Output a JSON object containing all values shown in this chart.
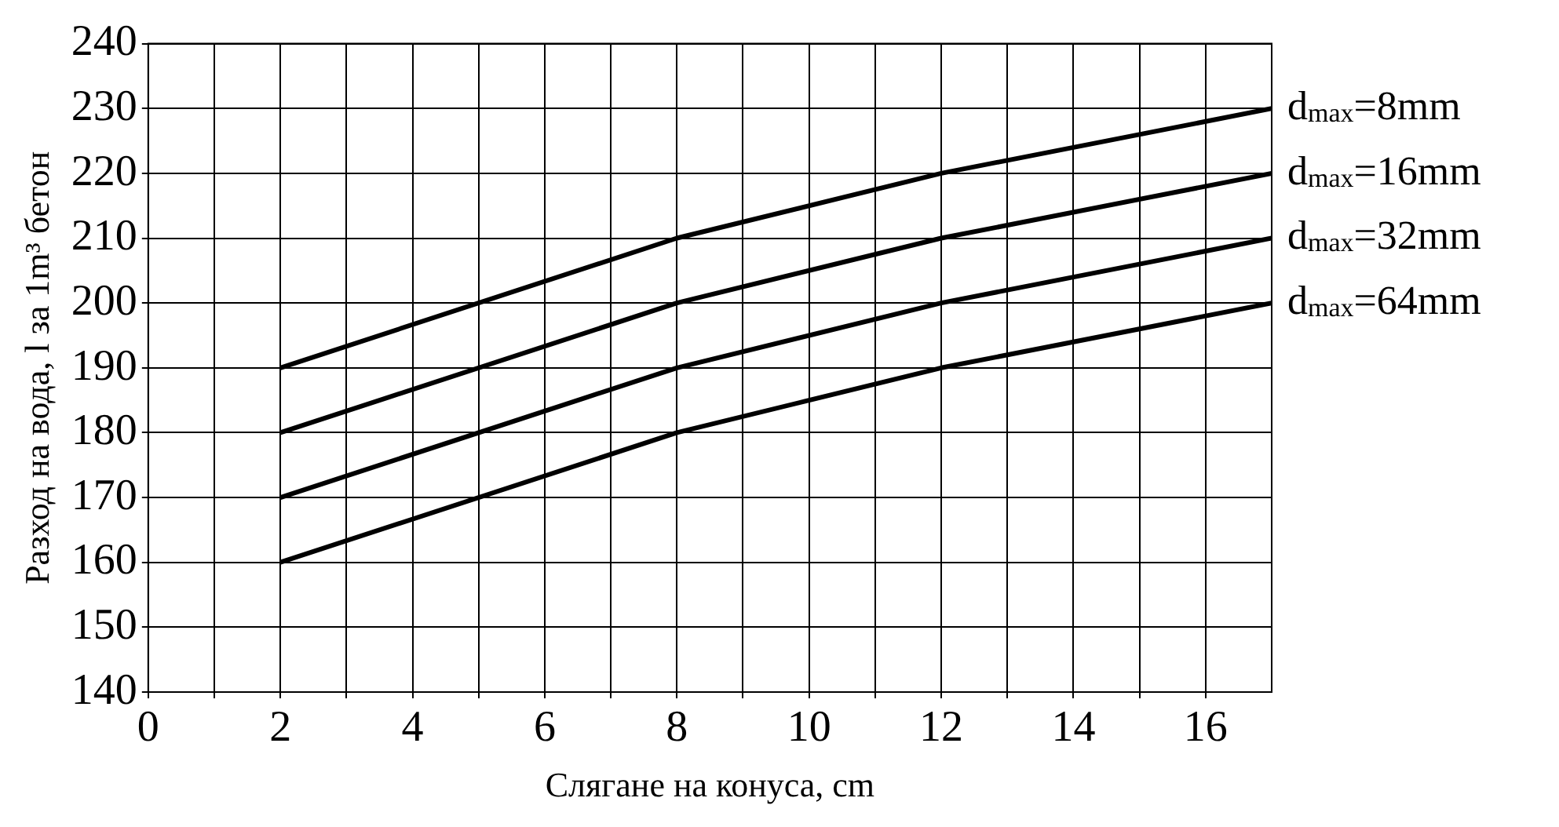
{
  "chart_data": {
    "type": "line",
    "xlabel": "Слягане на конуса, cm",
    "ylabel": "Разход на вода, l за 1m³ бетон",
    "x": [
      2,
      8,
      12,
      17
    ],
    "series": [
      {
        "name": "d$_{max}$=8mm",
        "color": "#000000",
        "values": [
          190,
          210,
          220,
          230
        ]
      },
      {
        "name": "d$_{max}$=16mm",
        "color": "#000000",
        "values": [
          180,
          200,
          210,
          220
        ]
      },
      {
        "name": "d$_{max}$=32mm",
        "color": "#000000",
        "values": [
          170,
          190,
          200,
          210
        ]
      },
      {
        "name": "d$_{max}$=64mm",
        "color": "#000000",
        "values": [
          160,
          180,
          190,
          200
        ]
      }
    ],
    "xlim": [
      0,
      17
    ],
    "xticks": [
      0,
      {
        "value": 1,
        "label": null
      },
      2,
      {
        "value": 3,
        "label": null
      },
      4,
      {
        "value": 5,
        "label": null
      },
      6,
      {
        "value": 7,
        "label": null
      },
      8,
      {
        "value": 9,
        "label": null
      },
      10,
      {
        "value": 11,
        "label": null
      },
      12,
      {
        "value": 13,
        "label": null
      },
      14,
      {
        "value": 15,
        "label": null
      },
      16
    ],
    "ylim": [
      140,
      240
    ],
    "yticks": [
      140,
      150,
      160,
      170,
      180,
      190,
      200,
      210,
      220,
      230,
      240
    ],
    "grid": true,
    "legend": false,
    "marker": "none",
    "line_style": "solid"
  }
}
